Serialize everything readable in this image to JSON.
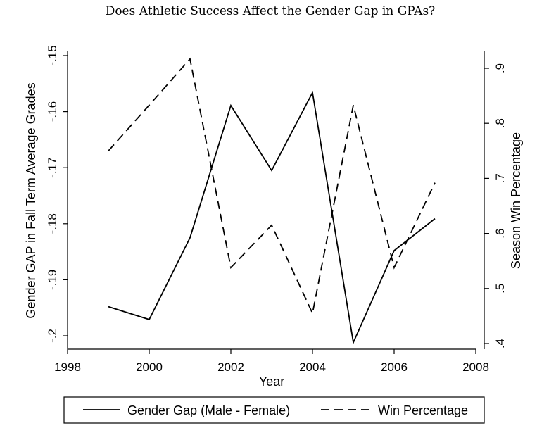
{
  "chart_data": {
    "type": "line",
    "title": "Does Athletic Success Affect the Gender Gap in GPAs?",
    "xlabel": "Year",
    "ylabel_left": "Gender GAP  in Fall Term Average Grades",
    "ylabel_right": "Season Win Percentage",
    "xlim": [
      1998,
      2008
    ],
    "x_ticks": [
      {
        "value": 1998,
        "label": "1998"
      },
      {
        "value": 2000,
        "label": "2000"
      },
      {
        "value": 2002,
        "label": "2002"
      },
      {
        "value": 2004,
        "label": "2004"
      },
      {
        "value": 2006,
        "label": "2006"
      },
      {
        "value": 2008,
        "label": "2008"
      }
    ],
    "ylim_left": [
      -0.2,
      -0.15
    ],
    "y_ticks_left": [
      {
        "value": -0.2,
        "label": "-.2"
      },
      {
        "value": -0.19,
        "label": "-.19"
      },
      {
        "value": -0.18,
        "label": "-.18"
      },
      {
        "value": -0.17,
        "label": "-.17"
      },
      {
        "value": -0.16,
        "label": "-.16"
      },
      {
        "value": -0.15,
        "label": "-.15"
      }
    ],
    "ylim_right": [
      0.4,
      0.9
    ],
    "y_ticks_right": [
      {
        "value": 0.4,
        "label": ".4"
      },
      {
        "value": 0.5,
        "label": ".5"
      },
      {
        "value": 0.6,
        "label": ".6"
      },
      {
        "value": 0.7,
        "label": ".7"
      },
      {
        "value": 0.8,
        "label": ".8"
      },
      {
        "value": 0.9,
        "label": ".9"
      }
    ],
    "grid": false,
    "legend_position": "bottom",
    "series": [
      {
        "name": "Gender Gap (Male - Female)",
        "axis": "left",
        "style": "solid",
        "x": [
          1999,
          2000,
          2001,
          2002,
          2003,
          2004,
          2005,
          2006,
          2007
        ],
        "y": [
          -0.1948,
          -0.1971,
          -0.1825,
          -0.1589,
          -0.1705,
          -0.1566,
          -0.2012,
          -0.1848,
          -0.1791
        ]
      },
      {
        "name": "Win Percentage",
        "axis": "right",
        "style": "dashed",
        "x": [
          1999,
          2000,
          2001,
          2002,
          2003,
          2004,
          2005,
          2006,
          2007
        ],
        "y": [
          0.75,
          0.833,
          0.917,
          0.538,
          0.615,
          0.455,
          0.833,
          0.538,
          0.692
        ]
      }
    ]
  }
}
